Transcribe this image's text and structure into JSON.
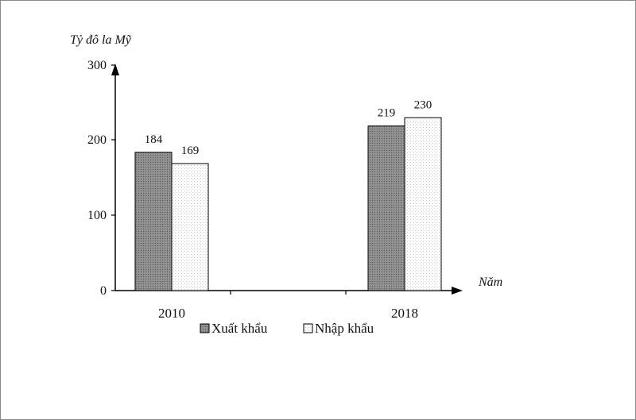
{
  "chart_data": {
    "type": "bar",
    "ylabel": "Tỷ đô la Mỹ",
    "xlabel": "Năm",
    "categories": [
      "2010",
      "2018"
    ],
    "ylim": [
      0,
      300
    ],
    "yticks": [
      "0",
      "100",
      "200",
      "300"
    ],
    "series": [
      {
        "name": "Xuất khẩu",
        "values": [
          184,
          219
        ],
        "color": "#8c8c8c",
        "pattern": "dark-dots"
      },
      {
        "name": "Nhập khẩu",
        "values": [
          169,
          230
        ],
        "color": "#ffffff",
        "pattern": "light-dots"
      }
    ],
    "value_labels": [
      [
        "184",
        "219"
      ],
      [
        "169",
        "230"
      ]
    ],
    "grid": false,
    "legend": "bottom"
  }
}
